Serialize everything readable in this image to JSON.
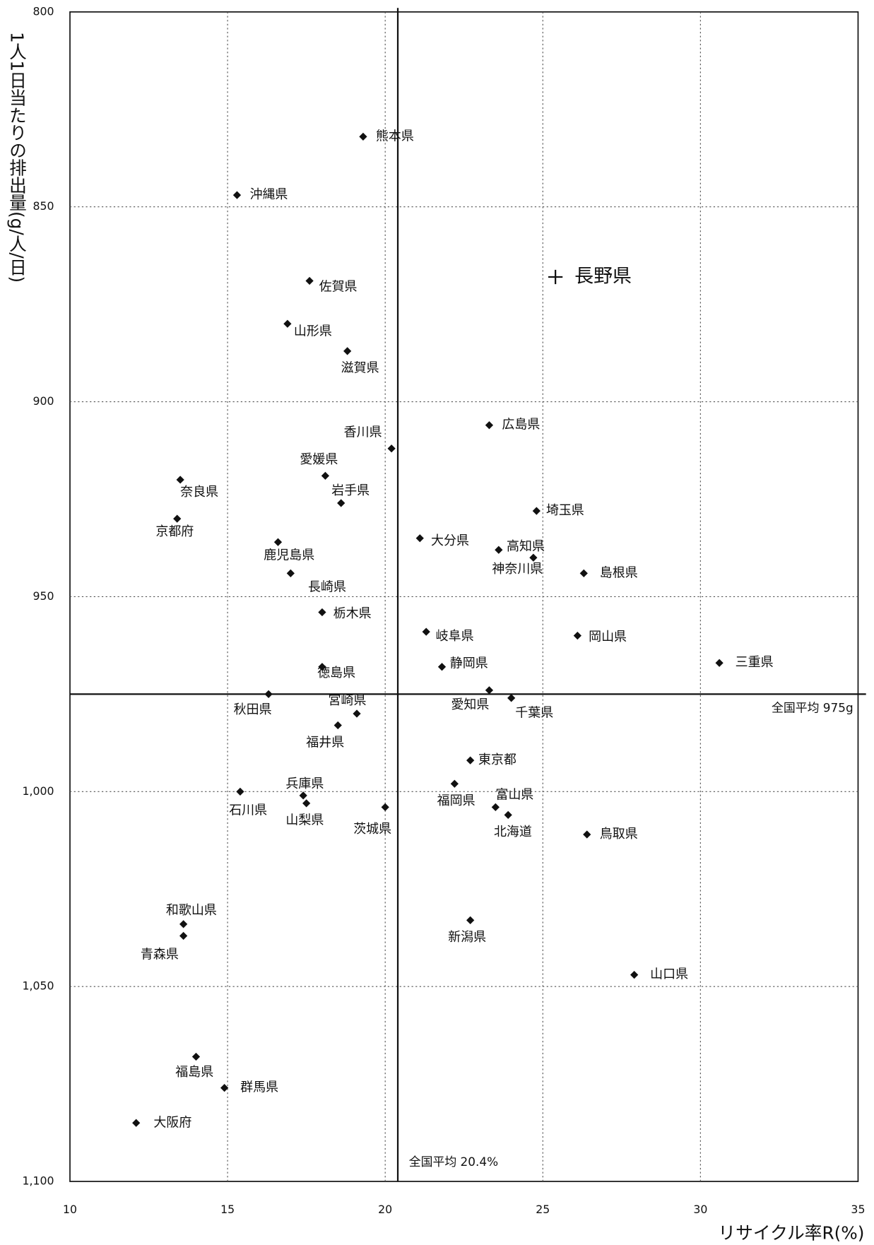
{
  "chart_data": {
    "type": "scatter",
    "x_label": "リサイクル率R(%)",
    "y_label": "1人1日当たりの排出量(g/人/日)",
    "xlim": [
      10,
      35
    ],
    "xticks": [
      10,
      15,
      20,
      25,
      30,
      35
    ],
    "ylim": [
      1100,
      800
    ],
    "yticks": [
      800,
      850,
      900,
      950,
      {
        "value": 1000,
        "label": "1,000"
      },
      {
        "value": 1050,
        "label": "1,050"
      },
      {
        "value": 1100,
        "label": "1,100"
      }
    ],
    "grid": true,
    "color": "#111",
    "labels": [
      "熊本県",
      "沖縄県",
      "佐賀県",
      "山形県",
      "滋賀県",
      "広島県",
      "香川県",
      "愛媛県",
      "奈良県",
      "岩手県",
      "埼玉県",
      "京都府",
      "大分県",
      "鹿児島県",
      "高知県",
      "神奈川県",
      "島根県",
      "長崎県",
      "栃木県",
      "岐阜県",
      "岡山県",
      "三重県",
      "徳島県",
      "静岡県",
      "愛知県",
      "千葉県",
      "秋田県",
      "宮崎県",
      "福井県",
      "東京都",
      "福岡県",
      "石川県",
      "兵庫県",
      "山梨県",
      "茨城県",
      "富山県",
      "北海道",
      "鳥取県",
      "和歌山県",
      "新潟県",
      "青森県",
      "山口県",
      "福島県",
      "群馬県",
      "大阪府"
    ],
    "x": [
      19.3,
      15.3,
      17.6,
      16.9,
      18.8,
      23.3,
      20.2,
      18.1,
      13.5,
      18.6,
      24.8,
      13.4,
      21.1,
      16.6,
      23.6,
      24.7,
      26.3,
      17.0,
      18.0,
      21.3,
      26.1,
      30.6,
      18.0,
      21.8,
      23.3,
      24.0,
      16.3,
      19.1,
      18.5,
      22.7,
      22.2,
      15.4,
      17.4,
      17.5,
      20.0,
      23.5,
      23.9,
      26.4,
      13.6,
      22.7,
      13.6,
      27.9,
      14.0,
      14.9,
      12.1
    ],
    "values": [
      832,
      847,
      869,
      880,
      887,
      906,
      912,
      919,
      920,
      926,
      928,
      930,
      935,
      936,
      938,
      940,
      944,
      944,
      954,
      959,
      960,
      967,
      968,
      968,
      974,
      976,
      975,
      980,
      983,
      992,
      998,
      1000,
      1001,
      1003,
      1004,
      1004,
      1006,
      1011,
      1034,
      1033,
      1037,
      1047,
      1068,
      1076,
      1085
    ],
    "highlight": {
      "label": "長野県",
      "x": 25.4,
      "y": 868
    },
    "avg_y": 975,
    "avg_y_label": "全国平均 975g",
    "avg_x": 20.4,
    "avg_x_label": "全国平均 20.4%"
  }
}
